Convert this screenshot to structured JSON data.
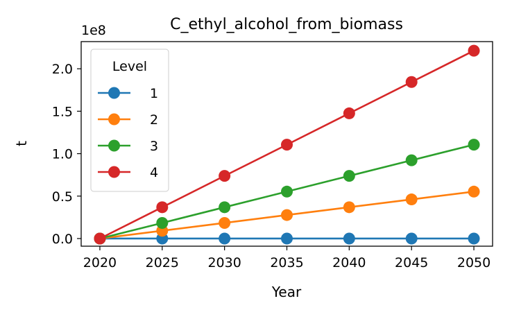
{
  "chart_data": {
    "type": "line",
    "title": "C_ethyl_alcohol_from_biomass",
    "xlabel": "Year",
    "ylabel": "t",
    "y_offset_label": "1e8",
    "x": [
      2020,
      2025,
      2030,
      2035,
      2040,
      2045,
      2050
    ],
    "x_ticks": [
      "2020",
      "2025",
      "2030",
      "2035",
      "2040",
      "2045",
      "2050"
    ],
    "y_ticks": [
      "0.0",
      "0.5",
      "1.0",
      "1.5",
      "2.0"
    ],
    "ylim": [
      -9000000,
      232000000
    ],
    "xlim": [
      2018.5,
      2051.5
    ],
    "grid": false,
    "legend": {
      "title": "Level",
      "placement": "upper-left"
    },
    "series": [
      {
        "name": "1",
        "color": "#1f77b4",
        "values": [
          0,
          0,
          0,
          0,
          0,
          0,
          0
        ]
      },
      {
        "name": "2",
        "color": "#ff7f0e",
        "values": [
          0,
          9200000,
          18400000,
          27700000,
          36900000,
          46100000,
          55300000
        ]
      },
      {
        "name": "3",
        "color": "#2ca02c",
        "values": [
          0,
          18400000,
          36900000,
          55300000,
          73800000,
          92200000,
          110600000
        ]
      },
      {
        "name": "4",
        "color": "#d62728",
        "values": [
          0,
          36900000,
          73800000,
          110600000,
          147500000,
          184400000,
          221300000
        ]
      }
    ]
  }
}
